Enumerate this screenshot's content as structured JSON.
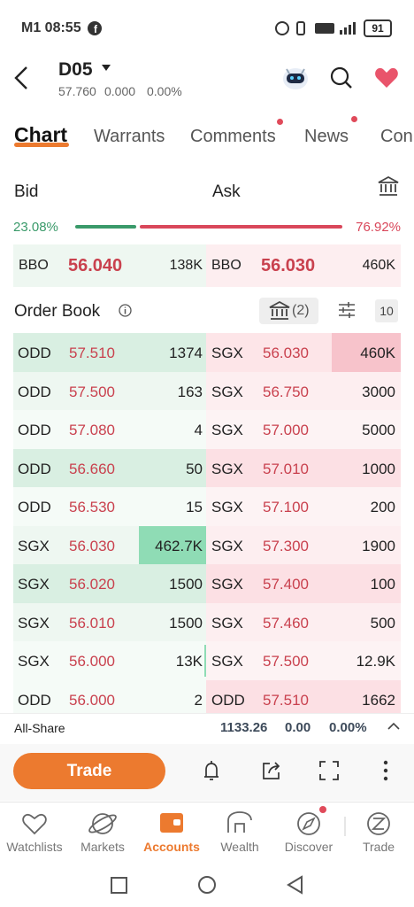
{
  "status": {
    "time": "M1 08:55",
    "battery": "91"
  },
  "header": {
    "symbol": "D05",
    "price": "57.760",
    "change": "0.000",
    "change_pct": "0.00%"
  },
  "tabs": [
    "Chart",
    "Warrants",
    "Comments",
    "News",
    "Con"
  ],
  "bid_ask": {
    "bid_label": "Bid",
    "ask_label": "Ask",
    "bid_pct": "23.08%",
    "ask_pct": "76.92%"
  },
  "bbo": {
    "bid": {
      "label": "BBO",
      "price": "56.040",
      "size": "138K"
    },
    "ask": {
      "label": "BBO",
      "price": "56.030",
      "size": "460K"
    }
  },
  "order_book": {
    "title": "Order Book",
    "exchange_count": "(2)",
    "depth": "10",
    "bids": [
      {
        "exchange": "ODD",
        "price": "57.510",
        "size": "1374"
      },
      {
        "exchange": "ODD",
        "price": "57.500",
        "size": "163"
      },
      {
        "exchange": "ODD",
        "price": "57.080",
        "size": "4"
      },
      {
        "exchange": "ODD",
        "price": "56.660",
        "size": "50"
      },
      {
        "exchange": "ODD",
        "price": "56.530",
        "size": "15"
      },
      {
        "exchange": "SGX",
        "price": "56.030",
        "size": "462.7K"
      },
      {
        "exchange": "SGX",
        "price": "56.020",
        "size": "1500"
      },
      {
        "exchange": "SGX",
        "price": "56.010",
        "size": "1500"
      },
      {
        "exchange": "SGX",
        "price": "56.000",
        "size": "13K"
      },
      {
        "exchange": "ODD",
        "price": "56.000",
        "size": "2"
      }
    ],
    "asks": [
      {
        "exchange": "SGX",
        "price": "56.030",
        "size": "460K"
      },
      {
        "exchange": "SGX",
        "price": "56.750",
        "size": "3000"
      },
      {
        "exchange": "SGX",
        "price": "57.000",
        "size": "5000"
      },
      {
        "exchange": "SGX",
        "price": "57.010",
        "size": "1000"
      },
      {
        "exchange": "SGX",
        "price": "57.100",
        "size": "200"
      },
      {
        "exchange": "SGX",
        "price": "57.300",
        "size": "1900"
      },
      {
        "exchange": "SGX",
        "price": "57.400",
        "size": "100"
      },
      {
        "exchange": "SGX",
        "price": "57.460",
        "size": "500"
      },
      {
        "exchange": "SGX",
        "price": "57.500",
        "size": "12.9K"
      },
      {
        "exchange": "ODD",
        "price": "57.510",
        "size": "1662"
      }
    ]
  },
  "index": {
    "name": "All-Share",
    "value": "1133.26",
    "change": "0.00",
    "change_pct": "0.00%"
  },
  "actions": {
    "trade": "Trade"
  },
  "nav": [
    "Watchlists",
    "Markets",
    "Accounts",
    "Wealth",
    "Discover",
    "Trade"
  ]
}
